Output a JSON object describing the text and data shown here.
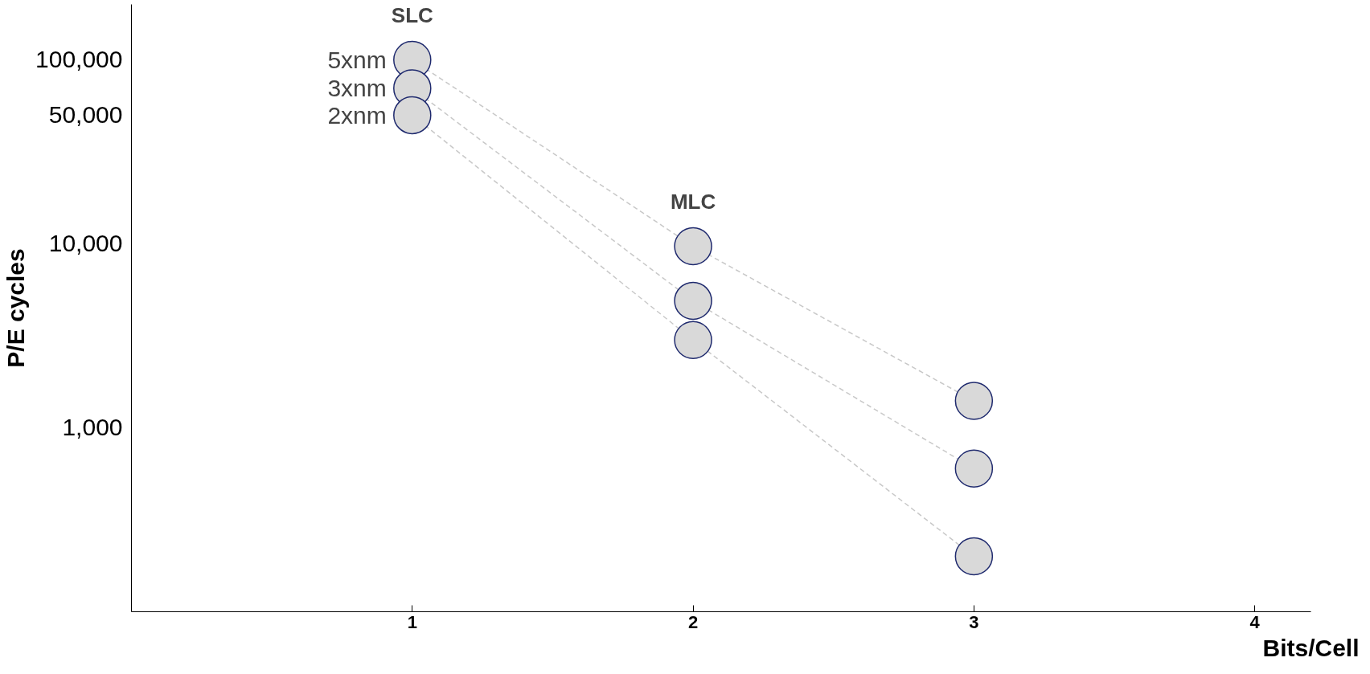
{
  "chart_data": {
    "type": "scatter",
    "xlabel": "Bits/Cell",
    "ylabel": "P/E cycles",
    "x": [
      1,
      2,
      3
    ],
    "series": [
      {
        "name": "5xnm",
        "color": "#d9d9d9",
        "values": [
          100000,
          9700,
          1400
        ]
      },
      {
        "name": "3xnm",
        "color": "#d9d9d9",
        "values": [
          70000,
          4900,
          600
        ]
      },
      {
        "name": "2xnm",
        "color": "#d9d9d9",
        "values": [
          50000,
          3000,
          200
        ]
      }
    ],
    "xlim": [
      0,
      4.2
    ],
    "xticks": [
      1,
      2,
      3,
      4
    ],
    "ylim": [
      100,
      200000
    ],
    "yticks": [
      {
        "value": 1000,
        "label": "1,000"
      },
      {
        "value": 10000,
        "label": "10,000"
      },
      {
        "value": 50000,
        "label": "50,000"
      },
      {
        "value": 100000,
        "label": "100,000"
      }
    ],
    "log": "y",
    "grid": false,
    "marker": "circle",
    "line_style": "dashed",
    "annotations": [
      "SLC",
      "MLC"
    ]
  }
}
